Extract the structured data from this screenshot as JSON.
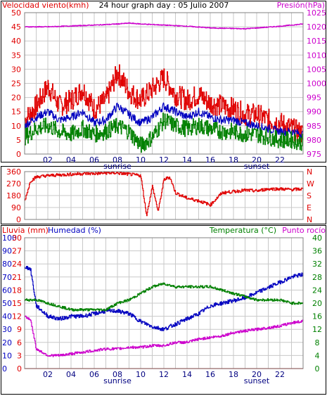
{
  "chart_data": [
    {
      "type": "line",
      "title": "24 hour graph day : 05 Julio 2007",
      "ylabel_left": "Velocidad viento(kmh)",
      "ylabel_right": "Presión(hPa)",
      "x_ticks": [
        "02",
        "04",
        "06",
        "08",
        "10",
        "12",
        "14",
        "16",
        "18",
        "20",
        "22"
      ],
      "x_range": [
        0,
        24
      ],
      "sunrise_label": "sunrise",
      "sunset_label": "sunset",
      "sunrise_hour": 8,
      "sunset_hour": 20,
      "yticks_left": [
        0,
        5,
        10,
        15,
        20,
        25,
        30,
        35,
        40,
        45,
        50
      ],
      "ylim_left": [
        0,
        50
      ],
      "yticks_right": [
        975,
        980,
        985,
        990,
        995,
        1000,
        1005,
        1010,
        1015,
        1020,
        1025
      ],
      "ylim_right": [
        975,
        1025
      ],
      "grid": true,
      "colors": {
        "gust": "#e00000",
        "average": "#0000c0",
        "min": "#008000",
        "pressure": "#cc00cc"
      },
      "series": [
        {
          "key": "gust",
          "axis": "left",
          "x": [
            0,
            1,
            2,
            3,
            4,
            5,
            6,
            7,
            8,
            9,
            10,
            11,
            12,
            13,
            14,
            15,
            16,
            17,
            18,
            19,
            20,
            21,
            22,
            23,
            24
          ],
          "values": [
            12,
            17,
            24,
            17,
            19,
            23,
            16,
            19,
            29,
            22,
            19,
            23,
            27,
            21,
            19,
            21,
            18,
            17,
            16,
            14,
            14,
            12,
            11,
            9,
            7
          ]
        },
        {
          "key": "average",
          "axis": "left",
          "x": [
            0,
            1,
            2,
            3,
            4,
            5,
            6,
            7,
            8,
            9,
            10,
            11,
            12,
            13,
            14,
            15,
            16,
            17,
            18,
            19,
            20,
            21,
            22,
            23,
            24
          ],
          "values": [
            10,
            13,
            15,
            12,
            13,
            15,
            11,
            12,
            17,
            14,
            11,
            13,
            17,
            15,
            13,
            15,
            13,
            12,
            12,
            11,
            10,
            9,
            8,
            8,
            7
          ]
        },
        {
          "key": "min",
          "axis": "left",
          "x": [
            0,
            1,
            2,
            3,
            4,
            5,
            6,
            7,
            8,
            9,
            10,
            11,
            12,
            13,
            14,
            15,
            16,
            17,
            18,
            19,
            20,
            21,
            22,
            23,
            24
          ],
          "values": [
            6,
            9,
            10,
            8,
            7,
            9,
            7,
            8,
            10,
            8,
            3,
            6,
            12,
            10,
            9,
            10,
            9,
            8,
            8,
            7,
            7,
            6,
            5,
            5,
            4
          ]
        },
        {
          "key": "pressure",
          "axis": "right",
          "x": [
            0,
            2,
            4,
            6,
            8,
            9,
            10,
            12,
            14,
            16,
            18,
            19,
            20,
            22,
            24
          ],
          "values": [
            1020,
            1020,
            1020.3,
            1020.6,
            1021,
            1021.3,
            1021,
            1020.6,
            1020.2,
            1019.6,
            1019.4,
            1019.3,
            1019.6,
            1020.2,
            1021
          ]
        }
      ]
    },
    {
      "type": "line",
      "ylabel": "",
      "yticks": [
        0,
        90,
        180,
        270,
        360
      ],
      "ylim": [
        0,
        360
      ],
      "right_labels": [
        "N",
        "W",
        "S",
        "E",
        "N"
      ],
      "grid": true,
      "colors": {
        "direction": "#e00000"
      },
      "series": [
        {
          "key": "direction",
          "x": [
            0,
            0.5,
            1,
            2,
            3,
            4,
            5,
            6,
            7,
            8,
            9,
            10,
            10.5,
            11,
            11.5,
            12,
            12.5,
            13,
            14,
            15,
            16,
            17,
            18,
            19,
            20,
            21,
            22,
            23,
            24
          ],
          "values": [
            140,
            290,
            320,
            330,
            335,
            340,
            345,
            345,
            350,
            350,
            340,
            330,
            30,
            250,
            60,
            300,
            320,
            200,
            160,
            140,
            110,
            200,
            210,
            220,
            215,
            230,
            230,
            225,
            230
          ]
        }
      ]
    },
    {
      "type": "line",
      "ylabel_left_1": "Lluvia (mm)",
      "ylabel_left_2": "Humedad (%)",
      "ylabel_right_1": "Temperatura (°C)",
      "ylabel_right_2": "Punto rocío",
      "yticks_rain": [
        0,
        3,
        6,
        9,
        12,
        15,
        18,
        21,
        24,
        27,
        30
      ],
      "yticks_humidity": [
        0,
        10,
        20,
        30,
        40,
        50,
        60,
        70,
        80,
        90,
        100
      ],
      "yticks_temp": [
        0,
        4,
        8,
        12,
        16,
        20,
        24,
        28,
        32,
        36,
        40
      ],
      "ylim_rain": [
        0,
        30
      ],
      "ylim_humidity": [
        0,
        100
      ],
      "ylim_temp": [
        0,
        40
      ],
      "x_ticks": [
        "02",
        "04",
        "06",
        "08",
        "10",
        "12",
        "14",
        "16",
        "18",
        "20",
        "22"
      ],
      "sunrise_label": "sunrise",
      "sunset_label": "sunset",
      "grid": true,
      "colors": {
        "rain": "#e00000",
        "humidity": "#0000c0",
        "temperature": "#008000",
        "dewpoint": "#cc00cc"
      },
      "series": [
        {
          "key": "humidity",
          "axis": "humidity",
          "x": [
            0,
            0.5,
            1,
            2,
            3,
            4,
            5,
            6,
            7,
            8,
            9,
            10,
            11,
            12,
            13,
            14,
            15,
            16,
            17,
            18,
            19,
            20,
            21,
            22,
            23,
            24
          ],
          "values": [
            78,
            76,
            48,
            40,
            38,
            40,
            40,
            42,
            44,
            44,
            42,
            36,
            32,
            30,
            34,
            38,
            42,
            48,
            50,
            52,
            54,
            58,
            62,
            66,
            70,
            72
          ]
        },
        {
          "key": "temperature",
          "axis": "temp",
          "x": [
            0,
            1,
            2,
            3,
            4,
            5,
            6,
            7,
            8,
            9,
            10,
            11,
            12,
            13,
            14,
            15,
            16,
            17,
            18,
            19,
            20,
            21,
            22,
            23,
            24
          ],
          "values": [
            21,
            21,
            20,
            19,
            18,
            18,
            18,
            18,
            20,
            21,
            23,
            25,
            26,
            25,
            25,
            25,
            25,
            24,
            23,
            22,
            21,
            21,
            21,
            20,
            20
          ]
        },
        {
          "key": "dewpoint",
          "axis": "temp",
          "x": [
            0,
            0.5,
            1,
            2,
            3,
            4,
            5,
            6,
            7,
            8,
            9,
            10,
            11,
            12,
            13,
            14,
            15,
            16,
            17,
            18,
            19,
            20,
            21,
            22,
            23,
            24
          ],
          "values": [
            16,
            15,
            6,
            4,
            4,
            4.5,
            5,
            5.5,
            6,
            6,
            6.5,
            6.5,
            7,
            7,
            8,
            8,
            9,
            9.5,
            10,
            11,
            11.5,
            12,
            12.5,
            13,
            14,
            14.5
          ]
        },
        {
          "key": "rain",
          "axis": "rain",
          "x": [
            0,
            24
          ],
          "values": [
            0,
            0
          ]
        }
      ]
    }
  ]
}
